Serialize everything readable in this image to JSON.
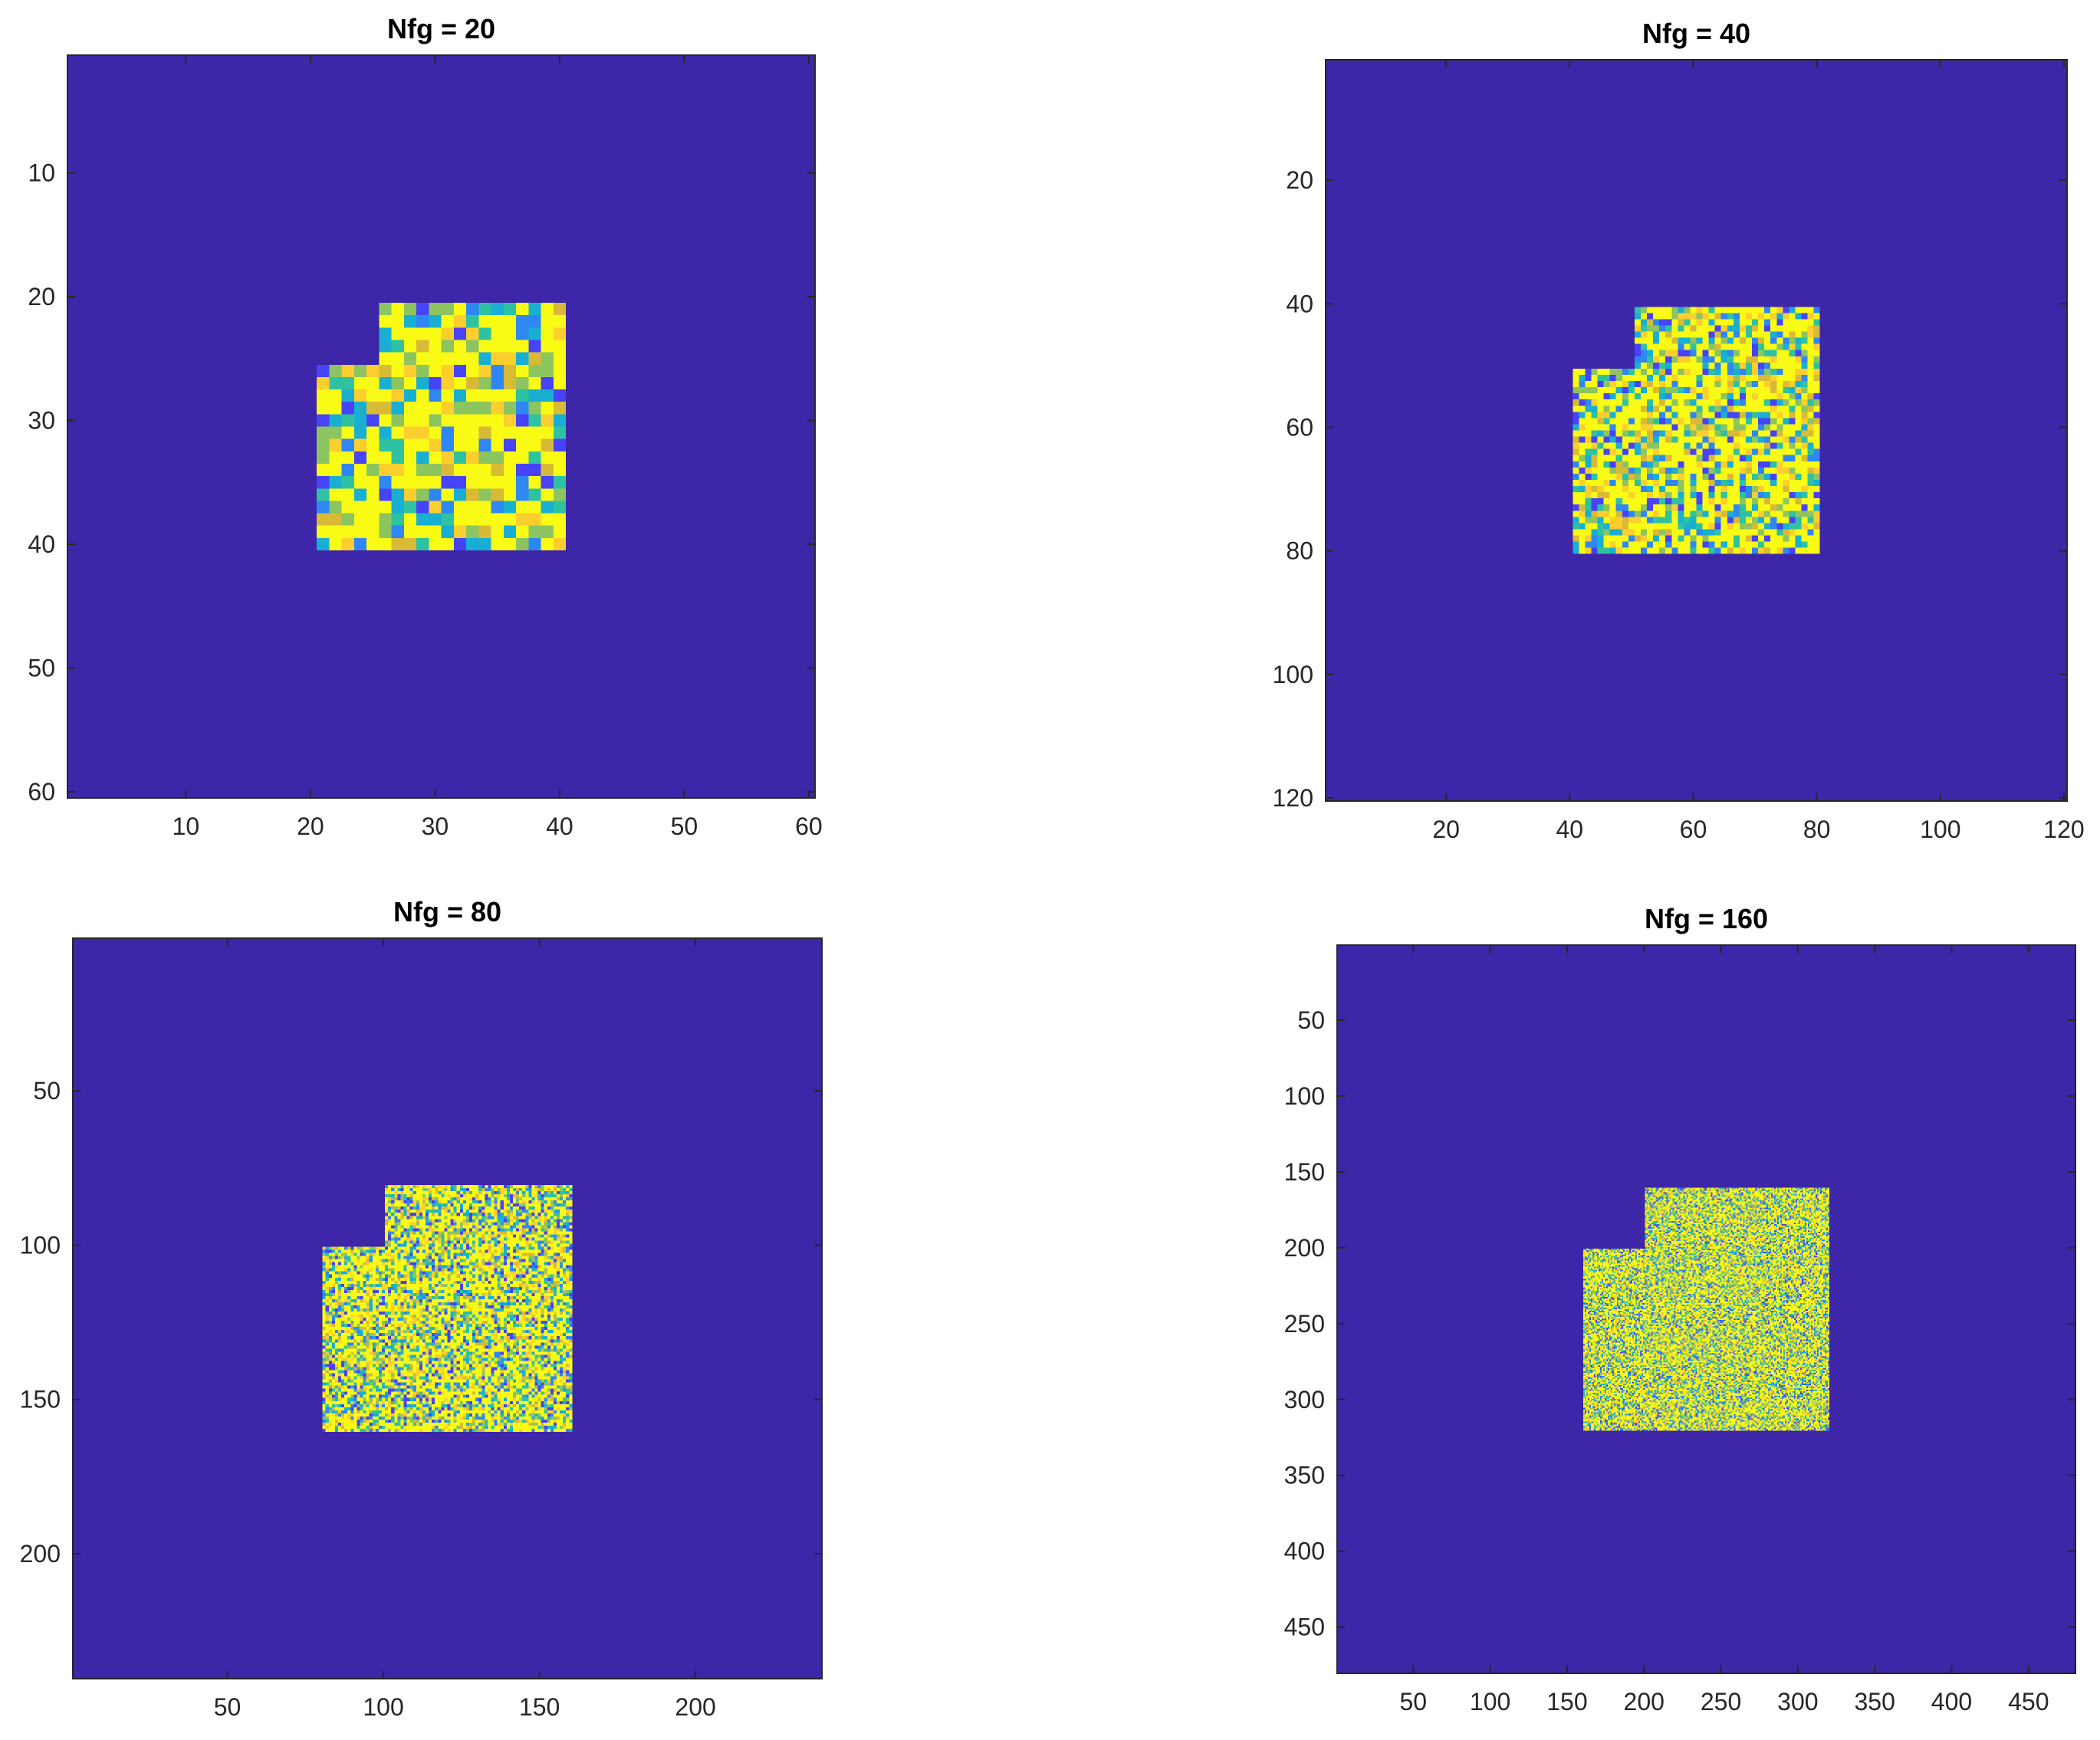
{
  "chart_data": [
    {
      "type": "heatmap",
      "title": "Nfg = 20",
      "grid_size": 60,
      "xlim": [
        0.5,
        60.5
      ],
      "ylim": [
        0.5,
        60.5
      ],
      "y_direction": "reverse",
      "xticks": [
        10,
        20,
        30,
        40,
        50,
        60
      ],
      "yticks": [
        10,
        20,
        30,
        40,
        50,
        60
      ],
      "background_value": 0,
      "background_color": "#3e26a8",
      "foreground_regions": [
        {
          "x": [
            26,
            40
          ],
          "y": [
            21,
            40
          ]
        },
        {
          "x": [
            21,
            25
          ],
          "y": [
            26,
            40
          ]
        }
      ],
      "foreground_fill": "random"
    },
    {
      "type": "heatmap",
      "title": "Nfg = 40",
      "grid_size": 120,
      "xlim": [
        0.5,
        120.5
      ],
      "ylim": [
        0.5,
        120.5
      ],
      "y_direction": "reverse",
      "xticks": [
        20,
        40,
        60,
        80,
        100,
        120
      ],
      "yticks": [
        20,
        40,
        60,
        80,
        100,
        120
      ],
      "background_value": 0,
      "background_color": "#3e26a8",
      "foreground_regions": [
        {
          "x": [
            51,
            80
          ],
          "y": [
            41,
            80
          ]
        },
        {
          "x": [
            41,
            50
          ],
          "y": [
            51,
            80
          ]
        }
      ],
      "foreground_fill": "random"
    },
    {
      "type": "heatmap",
      "title": "Nfg = 80",
      "grid_size": 240,
      "xlim": [
        0.5,
        240.5
      ],
      "ylim": [
        0.5,
        240.5
      ],
      "y_direction": "reverse",
      "xticks": [
        50,
        100,
        150,
        200
      ],
      "yticks": [
        50,
        100,
        150,
        200
      ],
      "background_value": 0,
      "background_color": "#3e26a8",
      "foreground_regions": [
        {
          "x": [
            101,
            160
          ],
          "y": [
            81,
            160
          ]
        },
        {
          "x": [
            81,
            100
          ],
          "y": [
            101,
            160
          ]
        }
      ],
      "foreground_fill": "random"
    },
    {
      "type": "heatmap",
      "title": "Nfg = 160",
      "grid_size": 480,
      "xlim": [
        0.5,
        480.5
      ],
      "ylim": [
        0.5,
        480.5
      ],
      "y_direction": "reverse",
      "xticks": [
        50,
        100,
        150,
        200,
        250,
        300,
        350,
        400,
        450
      ],
      "yticks": [
        50,
        100,
        150,
        200,
        250,
        300,
        350,
        400,
        450
      ],
      "background_value": 0,
      "background_color": "#3e26a8",
      "foreground_regions": [
        {
          "x": [
            201,
            320
          ],
          "y": [
            161,
            320
          ]
        },
        {
          "x": [
            161,
            200
          ],
          "y": [
            201,
            320
          ]
        }
      ],
      "foreground_fill": "random"
    }
  ],
  "colormap": [
    "#3e26a8",
    "#4743f8",
    "#2f87f4",
    "#19afd3",
    "#2ec2a2",
    "#8cc460",
    "#d9ba36",
    "#fcce2e",
    "#f9fb15"
  ]
}
